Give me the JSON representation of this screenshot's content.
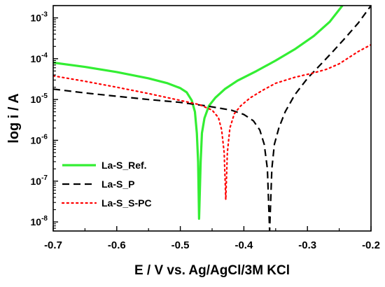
{
  "chart_data": {
    "type": "line",
    "title": "",
    "xlabel": "E / V vs. Ag/AgCl/3M KCl",
    "ylabel": "log i / A",
    "xlim": [
      -0.7,
      -0.2
    ],
    "ylim": [
      6e-09,
      0.002
    ],
    "y_scale": "log",
    "grid": false,
    "legend_position": "bottom-left",
    "x_ticks": [
      -0.7,
      -0.6,
      -0.5,
      -0.4,
      -0.3,
      -0.2
    ],
    "x_tick_labels": [
      "-0.7",
      "-0.6",
      "-0.5",
      "-0.4",
      "-0.3",
      "-0.2"
    ],
    "y_ticks": [
      {
        "value": 1e-08,
        "base": "10",
        "exp": "-8"
      },
      {
        "value": 1e-07,
        "base": "10",
        "exp": "-7"
      },
      {
        "value": 1e-06,
        "base": "10",
        "exp": "-6"
      },
      {
        "value": 1e-05,
        "base": "10",
        "exp": "-5"
      },
      {
        "value": 0.0001,
        "base": "10",
        "exp": "-4"
      },
      {
        "value": 0.001,
        "base": "10",
        "exp": "-3"
      }
    ],
    "series": [
      {
        "name": "La-S_Ref.",
        "color": "#33ee33",
        "style": "solid",
        "points": [
          [
            -0.7,
            8e-05
          ],
          [
            -0.65,
            6.3e-05
          ],
          [
            -0.6,
            4.7e-05
          ],
          [
            -0.55,
            3.3e-05
          ],
          [
            -0.52,
            2.5e-05
          ],
          [
            -0.5,
            1.9e-05
          ],
          [
            -0.49,
            1.5e-05
          ],
          [
            -0.482,
            9.5e-06
          ],
          [
            -0.477,
            5e-06
          ],
          [
            -0.474,
            1.5e-06
          ],
          [
            -0.472,
            3e-07
          ],
          [
            -0.4705,
            1.2e-08
          ],
          [
            -0.468,
            3e-07
          ],
          [
            -0.466,
            1.5e-06
          ],
          [
            -0.462,
            3.5e-06
          ],
          [
            -0.455,
            7e-06
          ],
          [
            -0.445,
            1.1e-05
          ],
          [
            -0.43,
            1.8e-05
          ],
          [
            -0.41,
            2.9e-05
          ],
          [
            -0.38,
            5e-05
          ],
          [
            -0.35,
            9e-05
          ],
          [
            -0.32,
            0.00017
          ],
          [
            -0.29,
            0.00036
          ],
          [
            -0.265,
            0.0008
          ],
          [
            -0.245,
            0.002
          ]
        ]
      },
      {
        "name": "La-S_P",
        "color": "#000000",
        "style": "dashed",
        "points": [
          [
            -0.7,
            1.8e-05
          ],
          [
            -0.65,
            1.45e-05
          ],
          [
            -0.6,
            1.2e-05
          ],
          [
            -0.55,
            1e-05
          ],
          [
            -0.5,
            8.5e-06
          ],
          [
            -0.46,
            7e-06
          ],
          [
            -0.42,
            5.5e-06
          ],
          [
            -0.4,
            4.3e-06
          ],
          [
            -0.385,
            3e-06
          ],
          [
            -0.375,
            1.8e-06
          ],
          [
            -0.368,
            8e-07
          ],
          [
            -0.363,
            2e-07
          ],
          [
            -0.3595,
            6e-09
          ],
          [
            -0.356,
            2e-07
          ],
          [
            -0.352,
            8e-07
          ],
          [
            -0.345,
            2e-06
          ],
          [
            -0.335,
            5e-06
          ],
          [
            -0.32,
            1.3e-05
          ],
          [
            -0.3,
            3.3e-05
          ],
          [
            -0.28,
            7e-05
          ],
          [
            -0.26,
            0.00015
          ],
          [
            -0.24,
            0.00033
          ],
          [
            -0.22,
            0.00075
          ],
          [
            -0.2,
            0.002
          ]
        ]
      },
      {
        "name": "La-S_S-PC",
        "color": "#ff0000",
        "style": "dotted",
        "points": [
          [
            -0.7,
            3.8e-05
          ],
          [
            -0.65,
            2.8e-05
          ],
          [
            -0.6,
            2e-05
          ],
          [
            -0.55,
            1.4e-05
          ],
          [
            -0.5,
            9.5e-06
          ],
          [
            -0.47,
            7.5e-06
          ],
          [
            -0.45,
            5.5e-06
          ],
          [
            -0.44,
            3.6e-06
          ],
          [
            -0.435,
            1.8e-06
          ],
          [
            -0.431,
            5e-07
          ],
          [
            -0.4285,
            3.5e-08
          ],
          [
            -0.426,
            5e-07
          ],
          [
            -0.422,
            2e-06
          ],
          [
            -0.415,
            4.5e-06
          ],
          [
            -0.405,
            7e-06
          ],
          [
            -0.39,
            1.1e-05
          ],
          [
            -0.37,
            1.7e-05
          ],
          [
            -0.35,
            2.5e-05
          ],
          [
            -0.32,
            3.5e-05
          ],
          [
            -0.29,
            4.5e-05
          ],
          [
            -0.27,
            5.5e-05
          ],
          [
            -0.25,
            7.5e-05
          ],
          [
            -0.22,
            0.00015
          ],
          [
            -0.2,
            0.00022
          ]
        ]
      }
    ]
  }
}
